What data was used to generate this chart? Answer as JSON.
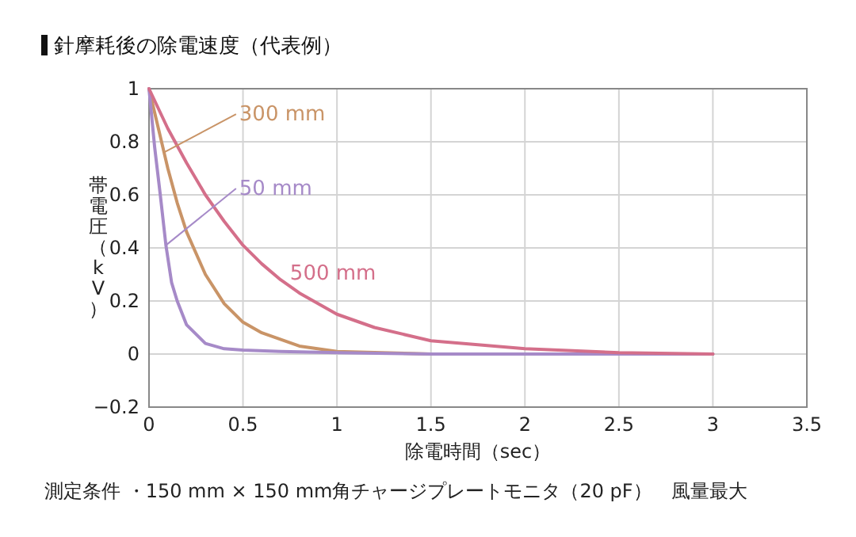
{
  "chart_data": {
    "type": "line",
    "title": "針摩耗後の除電速度（代表例）",
    "xlabel": "除電時間（sec）",
    "ylabel": "帯電圧（kV）",
    "annotations": [
      "測定条件 ・150 mm × 150 mm角チャージプレートモニタ（20 pF）　風量最大"
    ],
    "xlim": [
      0,
      3.5
    ],
    "xticks": [
      0,
      0.5,
      1,
      1.5,
      2,
      2.5,
      3,
      3.5
    ],
    "ylim": [
      -0.2,
      1
    ],
    "yticks": [
      {
        "value": -0.2,
        "label": "−0.2"
      },
      0,
      0.2,
      0.4,
      0.6,
      0.8,
      1
    ],
    "grid": true,
    "marker": "none",
    "line_style": "solid",
    "series": [
      {
        "name": "300 mm",
        "color": "#c99467",
        "x": [
          0,
          0.05,
          0.08,
          0.1,
          0.15,
          0.2,
          0.3,
          0.4,
          0.5,
          0.6,
          0.8,
          1.0,
          1.5,
          2.0,
          2.5,
          3.0
        ],
        "values": [
          1,
          0.85,
          0.76,
          0.7,
          0.57,
          0.46,
          0.3,
          0.19,
          0.12,
          0.08,
          0.03,
          0.01,
          0,
          0,
          0,
          0
        ]
      },
      {
        "name": "50 mm",
        "color": "#a68ac8",
        "x": [
          0,
          0.03,
          0.06,
          0.09,
          0.12,
          0.15,
          0.2,
          0.3,
          0.4,
          0.5,
          0.7,
          1.0,
          1.5,
          2.0,
          2.5,
          3.0
        ],
        "values": [
          1,
          0.78,
          0.6,
          0.41,
          0.27,
          0.2,
          0.11,
          0.04,
          0.02,
          0.015,
          0.01,
          0.005,
          0,
          0,
          0,
          0
        ]
      },
      {
        "name": "500 mm",
        "color": "#d46f8a",
        "x": [
          0,
          0.1,
          0.2,
          0.3,
          0.4,
          0.5,
          0.6,
          0.7,
          0.8,
          1.0,
          1.2,
          1.5,
          2.0,
          2.5,
          3.0
        ],
        "values": [
          1,
          0.85,
          0.72,
          0.6,
          0.5,
          0.41,
          0.34,
          0.28,
          0.23,
          0.15,
          0.1,
          0.05,
          0.02,
          0.005,
          0
        ]
      }
    ]
  }
}
